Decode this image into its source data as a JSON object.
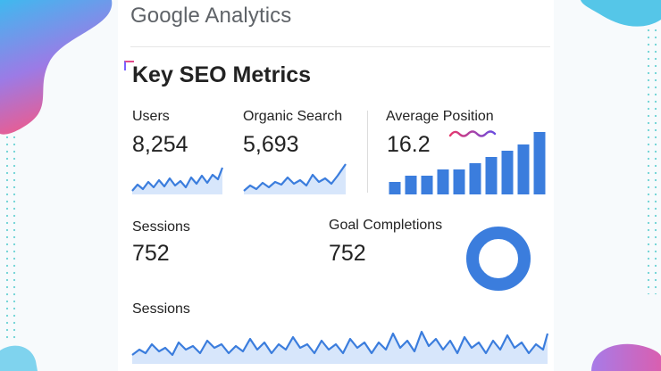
{
  "brand": "Google Analytics",
  "dashboard_title": "Key SEO Metrics",
  "colors": {
    "accent": "#3b7ddd",
    "fill": "#d7e6fb",
    "squiggle": "#e8386d"
  },
  "metrics": {
    "users": {
      "label": "Users",
      "value": "8,254"
    },
    "organic": {
      "label": "Organic Search",
      "value": "5,693"
    },
    "position": {
      "label": "Average Position",
      "value": "16.2"
    },
    "sessions": {
      "label": "Sessions",
      "value": "752"
    },
    "goals": {
      "label": "Goal Completions",
      "value": "752"
    }
  },
  "sessions_chart_label": "Sessions",
  "chart_data": [
    {
      "type": "bar",
      "series": [
        {
          "values": [
            2,
            3,
            3,
            4,
            4,
            5,
            6,
            7,
            8,
            10
          ]
        }
      ]
    },
    {
      "type": "pie",
      "values": [
        100
      ]
    }
  ]
}
